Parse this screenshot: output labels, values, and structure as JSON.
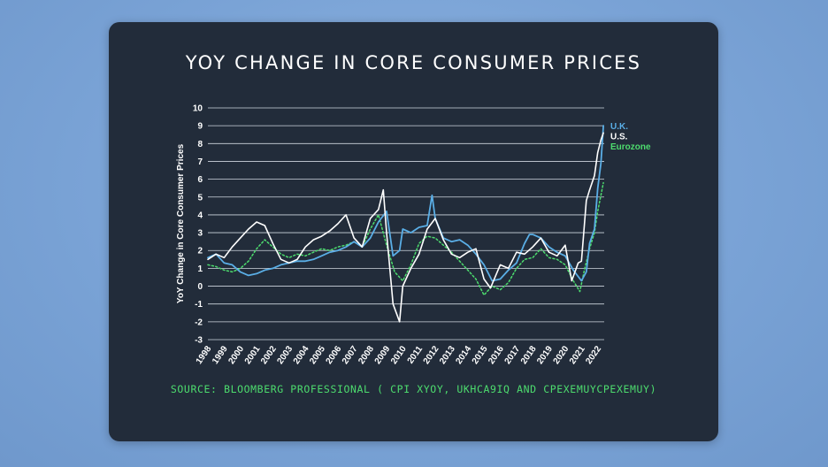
{
  "title": "YOY CHANGE IN CORE CONSUMER PRICES",
  "source": "SOURCE: BLOOMBERG PROFESSIONAL ( CPI XYOY, UKHCA9IQ AND CPEXEMUYCPEXEMUY)",
  "chart_data": {
    "type": "line",
    "ylabel": "YoY Change in Core Consumer Prices",
    "xlabel": "",
    "ylim": [
      -3,
      10
    ],
    "xlim": [
      1998,
      2022.4
    ],
    "yticks": [
      "10",
      "9",
      "8",
      "7",
      "6",
      "5",
      "4",
      "3",
      "2",
      "1",
      "0",
      "-1",
      "-2",
      "-3"
    ],
    "xticks": [
      "1998",
      "1999",
      "2000",
      "2001",
      "2002",
      "2003",
      "2004",
      "2005",
      "2006",
      "2007",
      "2008",
      "2009",
      "2010",
      "2011",
      "2012",
      "2013",
      "2014",
      "2015",
      "2016",
      "2017",
      "2018",
      "2019",
      "2020",
      "2021",
      "2022"
    ],
    "grid": true,
    "legend_position": "right",
    "series": [
      {
        "name": "U.K.",
        "color": "#5aaee6",
        "dash": "",
        "width": 1.8,
        "x": [
          1998.0,
          1998.5,
          1999.0,
          1999.5,
          2000.0,
          2000.5,
          2001.0,
          2001.5,
          2002.0,
          2002.5,
          2003.0,
          2003.5,
          2004.0,
          2004.5,
          2005.0,
          2005.5,
          2006.0,
          2006.5,
          2007.0,
          2007.5,
          2008.0,
          2008.5,
          2009.0,
          2009.4,
          2009.8,
          2010.0,
          2010.5,
          2011.0,
          2011.5,
          2011.8,
          2012.0,
          2012.5,
          2013.0,
          2013.5,
          2014.0,
          2014.5,
          2015.0,
          2015.5,
          2016.0,
          2016.5,
          2017.0,
          2017.5,
          2017.8,
          2018.0,
          2018.5,
          2019.0,
          2019.5,
          2020.0,
          2020.5,
          2021.0,
          2021.3,
          2021.5,
          2021.8,
          2022.0,
          2022.2,
          2022.35
        ],
        "values": [
          1.6,
          1.8,
          1.3,
          1.2,
          0.8,
          0.6,
          0.7,
          0.9,
          1.0,
          1.2,
          1.3,
          1.4,
          1.4,
          1.5,
          1.7,
          1.9,
          2.0,
          2.2,
          2.5,
          2.2,
          2.7,
          3.6,
          4.2,
          1.7,
          2.0,
          3.2,
          3.0,
          3.3,
          3.4,
          5.1,
          3.8,
          2.7,
          2.5,
          2.6,
          2.3,
          1.8,
          1.2,
          0.3,
          0.4,
          0.9,
          1.3,
          2.4,
          2.9,
          2.9,
          2.7,
          2.2,
          1.9,
          1.7,
          0.9,
          0.3,
          0.8,
          2.4,
          3.2,
          5.5,
          6.9,
          9.0
        ]
      },
      {
        "name": "U.S.",
        "color": "#ffffff",
        "dash": "",
        "width": 1.6,
        "x": [
          1998.0,
          1998.5,
          1999.0,
          1999.5,
          2000.0,
          2000.5,
          2001.0,
          2001.5,
          2002.0,
          2002.5,
          2003.0,
          2003.5,
          2004.0,
          2004.5,
          2005.0,
          2005.5,
          2006.0,
          2006.5,
          2007.0,
          2007.5,
          2008.0,
          2008.5,
          2008.8,
          2009.0,
          2009.4,
          2009.8,
          2010.0,
          2010.5,
          2011.0,
          2011.5,
          2012.0,
          2012.5,
          2013.0,
          2013.5,
          2014.0,
          2014.5,
          2015.0,
          2015.4,
          2016.0,
          2016.5,
          2017.0,
          2017.5,
          2018.0,
          2018.5,
          2019.0,
          2019.5,
          2020.0,
          2020.4,
          2020.8,
          2021.0,
          2021.3,
          2021.5,
          2021.8,
          2022.0,
          2022.2,
          2022.35
        ],
        "values": [
          1.5,
          1.8,
          1.6,
          2.2,
          2.7,
          3.2,
          3.6,
          3.4,
          2.4,
          1.5,
          1.3,
          1.5,
          2.2,
          2.6,
          2.8,
          3.1,
          3.5,
          4.0,
          2.7,
          2.2,
          3.8,
          4.3,
          5.4,
          3.0,
          -1.0,
          -2.0,
          0.0,
          1.0,
          1.8,
          3.2,
          3.8,
          2.6,
          1.8,
          1.6,
          1.9,
          2.1,
          0.4,
          -0.1,
          1.2,
          1.0,
          1.9,
          1.8,
          2.2,
          2.7,
          1.9,
          1.7,
          2.3,
          0.3,
          1.3,
          1.4,
          4.8,
          5.4,
          6.2,
          7.5,
          8.2,
          8.6
        ]
      },
      {
        "name": "Eurozone",
        "color": "#4ddc6e",
        "dash": "2,2.5",
        "width": 1.5,
        "x": [
          1998.0,
          1998.5,
          1999.0,
          1999.5,
          2000.0,
          2000.5,
          2001.0,
          2001.5,
          2002.0,
          2002.5,
          2003.0,
          2003.5,
          2004.0,
          2004.5,
          2005.0,
          2005.5,
          2006.0,
          2006.5,
          2007.0,
          2007.5,
          2008.0,
          2008.5,
          2009.0,
          2009.5,
          2010.0,
          2010.5,
          2011.0,
          2011.5,
          2012.0,
          2012.5,
          2013.0,
          2013.5,
          2014.0,
          2014.5,
          2015.0,
          2015.5,
          2016.0,
          2016.5,
          2017.0,
          2017.5,
          2018.0,
          2018.5,
          2019.0,
          2019.5,
          2020.0,
          2020.5,
          2020.9,
          2021.2,
          2021.5,
          2021.8,
          2022.0,
          2022.2,
          2022.35
        ],
        "values": [
          1.2,
          1.1,
          0.9,
          0.8,
          1.0,
          1.4,
          2.1,
          2.6,
          2.2,
          1.8,
          1.6,
          1.8,
          1.7,
          1.9,
          2.1,
          2.0,
          2.2,
          2.3,
          2.5,
          2.2,
          3.2,
          4.0,
          2.3,
          0.8,
          0.3,
          1.2,
          2.4,
          2.8,
          2.7,
          2.3,
          1.9,
          1.4,
          0.9,
          0.4,
          -0.5,
          0.0,
          -0.2,
          0.2,
          1.0,
          1.5,
          1.6,
          2.1,
          1.6,
          1.5,
          1.2,
          0.3,
          -0.3,
          1.0,
          2.1,
          3.0,
          4.2,
          5.1,
          5.8
        ]
      }
    ]
  }
}
